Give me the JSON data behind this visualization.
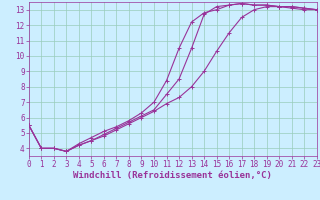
{
  "xlabel": "Windchill (Refroidissement éolien,°C)",
  "background_color": "#cceeff",
  "grid_color": "#99ccbb",
  "line_color": "#993399",
  "xlim": [
    0,
    23
  ],
  "ylim": [
    3.5,
    13.5
  ],
  "xticks": [
    0,
    1,
    2,
    3,
    4,
    5,
    6,
    7,
    8,
    9,
    10,
    11,
    12,
    13,
    14,
    15,
    16,
    17,
    18,
    19,
    20,
    21,
    22,
    23
  ],
  "yticks": [
    4,
    5,
    6,
    7,
    8,
    9,
    10,
    11,
    12,
    13
  ],
  "lines": [
    {
      "x": [
        0,
        1,
        2,
        3,
        4,
        5,
        6,
        7,
        8,
        9,
        10,
        11,
        12,
        13,
        14,
        15,
        16,
        17,
        18,
        19,
        20,
        21,
        22,
        23
      ],
      "y": [
        5.5,
        4.0,
        4.0,
        3.8,
        4.3,
        4.7,
        5.1,
        5.4,
        5.8,
        6.3,
        7.0,
        8.4,
        10.5,
        12.2,
        12.8,
        13.0,
        13.3,
        13.4,
        13.3,
        13.3,
        13.2,
        13.2,
        13.1,
        13.0
      ]
    },
    {
      "x": [
        0,
        1,
        2,
        3,
        4,
        5,
        6,
        7,
        8,
        9,
        10,
        11,
        12,
        13,
        14,
        15,
        16,
        17,
        18,
        19,
        20,
        21,
        22,
        23
      ],
      "y": [
        5.5,
        4.0,
        4.0,
        3.8,
        4.2,
        4.5,
        4.9,
        5.3,
        5.7,
        6.1,
        6.5,
        7.5,
        8.5,
        10.5,
        12.7,
        13.2,
        13.3,
        13.4,
        13.3,
        13.3,
        13.2,
        13.2,
        13.1,
        13.0
      ]
    },
    {
      "x": [
        0,
        1,
        2,
        3,
        4,
        5,
        6,
        7,
        8,
        9,
        10,
        11,
        12,
        13,
        14,
        15,
        16,
        17,
        18,
        19,
        20,
        21,
        22,
        23
      ],
      "y": [
        5.5,
        4.0,
        4.0,
        3.8,
        4.2,
        4.5,
        4.8,
        5.2,
        5.6,
        6.0,
        6.4,
        6.9,
        7.3,
        8.0,
        9.0,
        10.3,
        11.5,
        12.5,
        13.0,
        13.2,
        13.2,
        13.1,
        13.0,
        13.0
      ]
    }
  ],
  "marker": "+",
  "marker_size": 3,
  "line_width": 0.8,
  "tick_fontsize": 5.5,
  "xlabel_fontsize": 6.5
}
